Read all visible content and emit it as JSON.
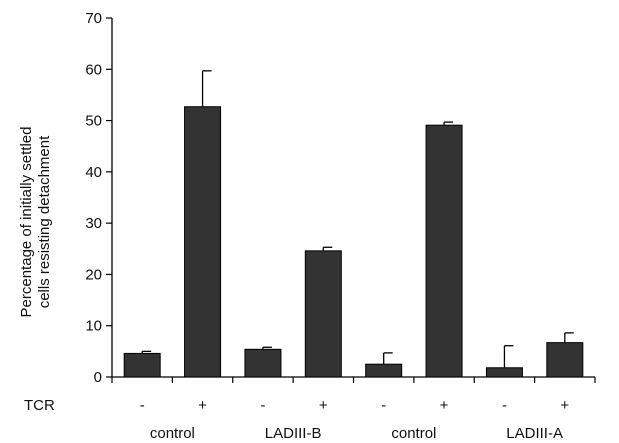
{
  "chart_data": {
    "type": "bar",
    "ylabel_lines": [
      "Percentage of initially settled",
      "cells resisting detachment"
    ],
    "ylim": [
      0,
      70
    ],
    "yticks": [
      0,
      10,
      20,
      30,
      40,
      50,
      60,
      70
    ],
    "grid": false,
    "tcr_row_label": "TCR",
    "groups": [
      "control",
      "LADIII-B",
      "control",
      "LADIII-A"
    ],
    "categories": [
      "-",
      "+",
      "-",
      "+",
      "-",
      "+",
      "-",
      "+"
    ],
    "values": [
      4.6,
      52.7,
      5.4,
      24.6,
      2.5,
      49.1,
      1.8,
      6.7
    ],
    "errors": [
      0.4,
      7.0,
      0.4,
      0.7,
      2.2,
      0.6,
      4.3,
      1.9
    ],
    "bar_color": "#333333"
  }
}
